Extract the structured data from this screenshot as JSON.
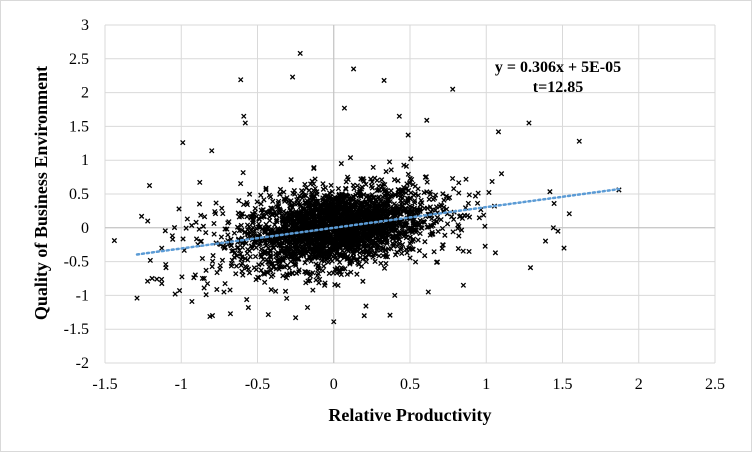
{
  "chart_data": {
    "type": "scatter",
    "xlabel": "Relative Productivity",
    "ylabel": "Quality of Business Environment",
    "xlim": [
      -1.5,
      2.5
    ],
    "ylim": [
      -2,
      3
    ],
    "x_ticks": [
      "-1.5",
      "-1",
      "-0.5",
      "0",
      "0.5",
      "1",
      "1.5",
      "2",
      "2.5"
    ],
    "y_ticks": [
      "-2",
      "-1.5",
      "-1",
      "-0.5",
      "0",
      "0.5",
      "1",
      "1.5",
      "2",
      "2.5",
      "3"
    ],
    "grid": true,
    "marker_color": "#000000",
    "trendline_color": "#5b9bd5",
    "trendline": {
      "slope": 0.306,
      "intercept": 5e-05,
      "x_range": [
        -1.29,
        1.87
      ],
      "style": "dotted"
    },
    "annotations": [
      "y = 0.306x + 5E-05",
      "t=12.85"
    ],
    "series": [
      {
        "points_approx": 2600,
        "cluster_center": [
          0.0,
          0.0
        ],
        "note_only_outliers_listed": true,
        "outliers": [
          [
            -0.22,
            2.58
          ],
          [
            -0.27,
            2.23
          ],
          [
            -0.61,
            2.19
          ],
          [
            0.13,
            2.35
          ],
          [
            0.33,
            2.18
          ],
          [
            0.78,
            2.05
          ],
          [
            -1.29,
            -1.04
          ],
          [
            -1.26,
            0.17
          ],
          [
            -1.04,
            -0.98
          ],
          [
            -0.93,
            -1.09
          ],
          [
            -1.1,
            -0.59
          ],
          [
            -0.96,
            0.13
          ],
          [
            -0.99,
            1.26
          ],
          [
            -0.8,
            1.14
          ],
          [
            -0.58,
            1.55
          ],
          [
            -0.59,
            1.65
          ],
          [
            0.07,
            1.77
          ],
          [
            0.43,
            1.65
          ],
          [
            0.61,
            1.59
          ],
          [
            1.08,
            1.42
          ],
          [
            1.28,
            1.55
          ],
          [
            1.61,
            1.28
          ],
          [
            1.51,
            -0.3
          ],
          [
            1.47,
            -0.05
          ],
          [
            1.29,
            -0.59
          ],
          [
            1.87,
            0.56
          ],
          [
            1.44,
            0.0
          ],
          [
            1.1,
            0.8
          ],
          [
            1.06,
            -0.37
          ],
          [
            0.2,
            -1.3
          ],
          [
            0.0,
            -1.39
          ],
          [
            -0.25,
            -1.33
          ],
          [
            -0.56,
            -1.18
          ],
          [
            -0.85,
            -0.89
          ],
          [
            0.85,
            -0.85
          ],
          [
            0.62,
            -0.95
          ],
          [
            0.4,
            -1.0
          ],
          [
            -1.16,
            -0.76
          ],
          [
            -1.22,
            0.1
          ],
          [
            -0.72,
            -0.95
          ]
        ]
      }
    ]
  }
}
